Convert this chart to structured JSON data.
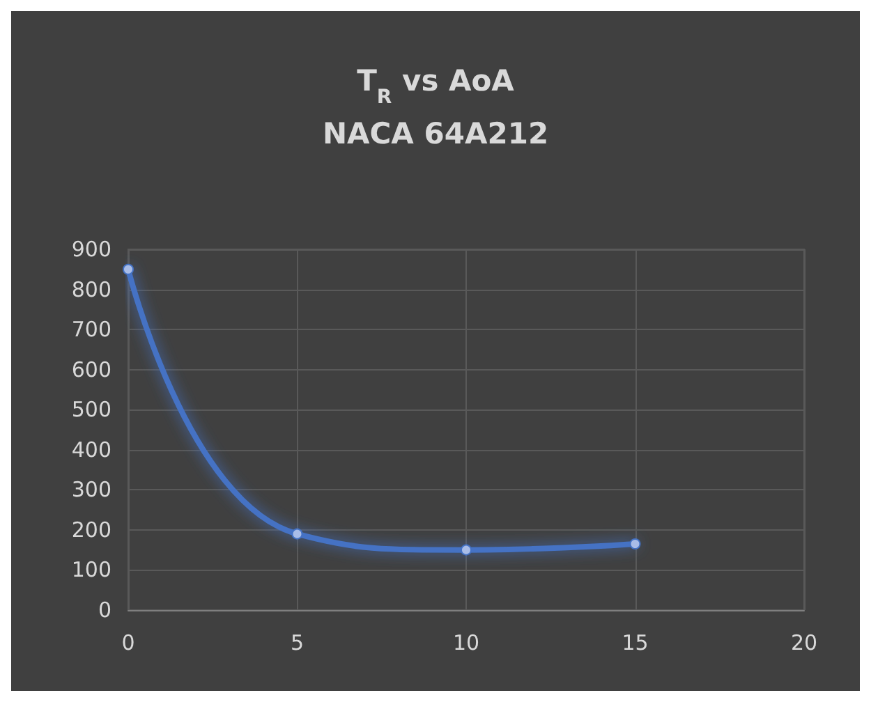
{
  "chart_data": {
    "type": "line",
    "title": "T$_{R}$ vs AoA\nNACA 64A212",
    "x": [
      0,
      5,
      10,
      15
    ],
    "series": [
      {
        "color": "#4472c4",
        "values": [
          850,
          190,
          150,
          165
        ]
      }
    ],
    "xlim": [
      0,
      20
    ],
    "xticks": [
      0,
      5,
      10,
      15,
      20
    ],
    "ylim": [
      0,
      900
    ],
    "yticks": [
      0,
      100,
      200,
      300,
      400,
      500,
      600,
      700,
      800,
      900
    ],
    "grid": true,
    "marker": "circle",
    "line_style": "solid"
  }
}
